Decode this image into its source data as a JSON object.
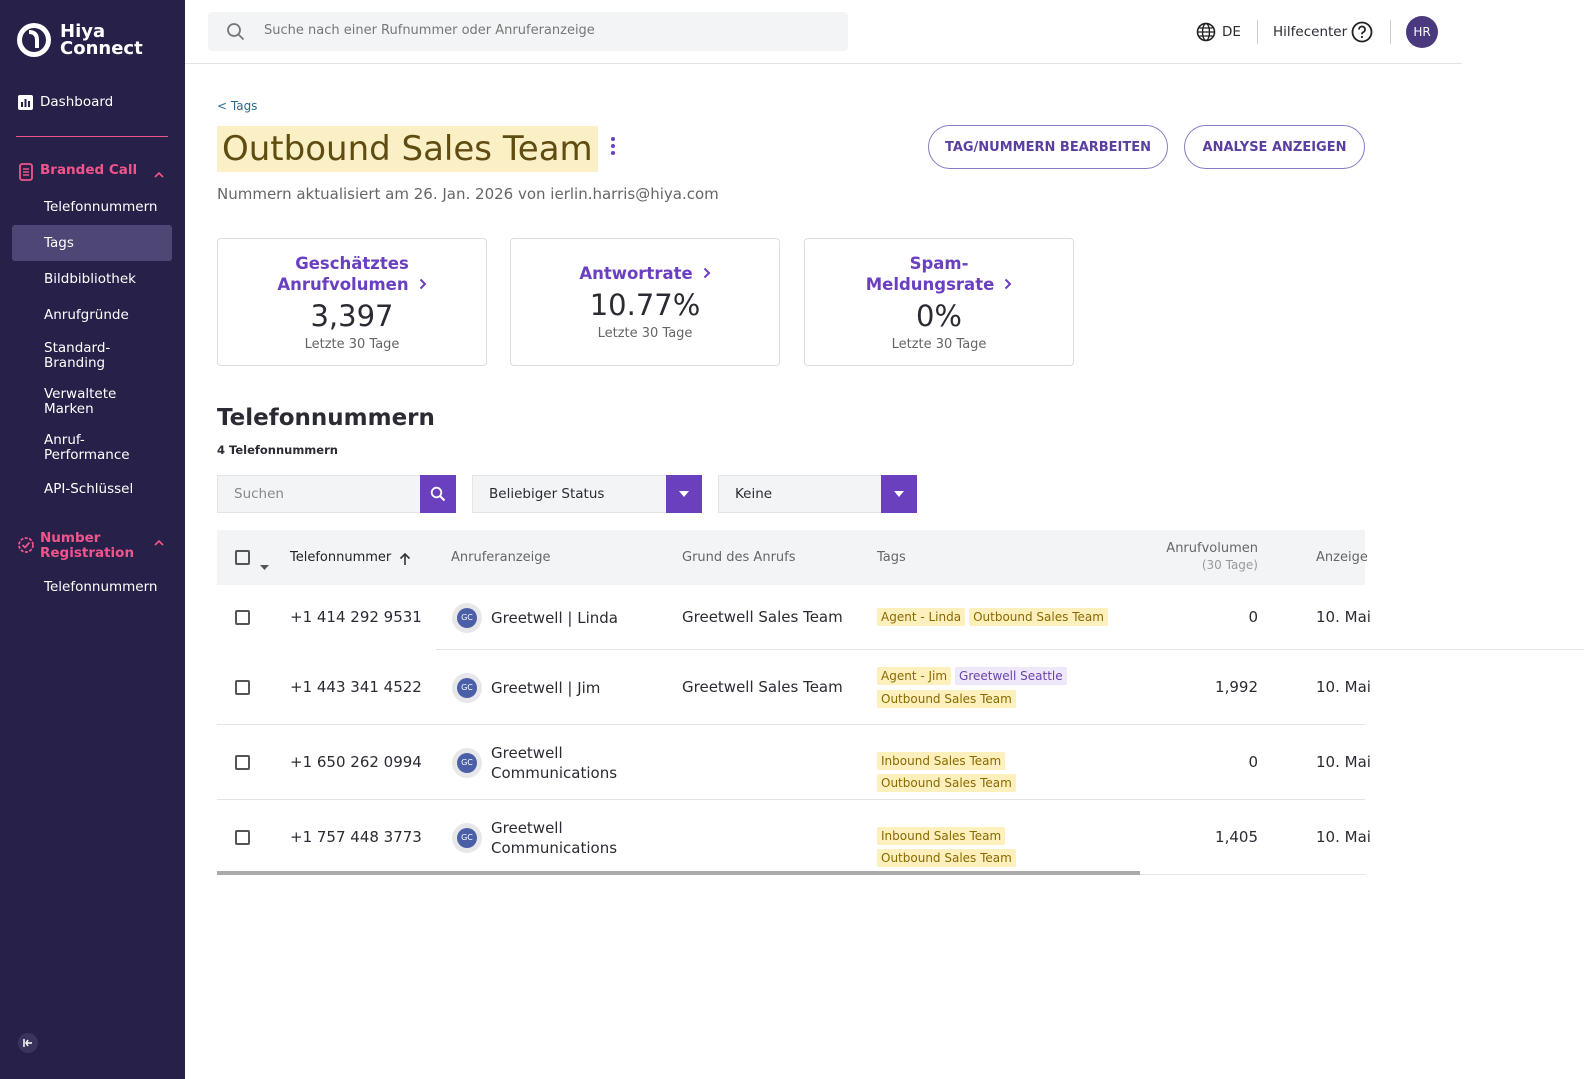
{
  "sidebar": {
    "logo": [
      "Hiya",
      "Connect"
    ],
    "dashboard": "Dashboard",
    "sections": [
      {
        "title": "Branded Call",
        "items": [
          "Telefonnummern",
          "Tags",
          "Bildbibliothek",
          "Anrufgründe",
          "Standard-Branding",
          "Verwaltete Marken",
          "Anruf-Performance",
          "API-Schlüssel"
        ]
      },
      {
        "title": "Number Registration",
        "items": [
          "Telefonnummern"
        ]
      }
    ]
  },
  "topbar": {
    "search_placeholder": "Suche nach einer Rufnummer oder Anruferanzeige",
    "language": "DE",
    "help": "Hilfecenter",
    "avatar": "HR"
  },
  "header": {
    "breadcrumb": "< Tags",
    "title": "Outbound Sales Team",
    "subtitle": "Nummern aktualisiert am 26. Jan. 2026 von ierlin.harris@hiya.com",
    "buttons": [
      "TAG/NUMMERN BEARBEITEN",
      "ANALYSE ANZEIGEN"
    ]
  },
  "stats": [
    {
      "title": "Geschätztes Anrufvolumen",
      "value": "3,397",
      "period": "Letzte 30 Tage"
    },
    {
      "title": "Antwortrate",
      "value": "10.77%",
      "period": "Letzte 30 Tage"
    },
    {
      "title": "Spam-Meldungsrate",
      "value": "0%",
      "period": "Letzte 30 Tage"
    }
  ],
  "numbers_section": {
    "title": "Telefonnummern",
    "count": "4 Telefonnummern",
    "search_placeholder": "Suchen",
    "filters": [
      "Beliebiger Status",
      "Keine"
    ]
  },
  "table": {
    "columns": [
      "Telefonnummer",
      "Anruferanzeige",
      "Grund des Anrufs",
      "Tags",
      "Anrufvolumen",
      "Anzeige"
    ],
    "volume_subtitle": "(30 Tage)",
    "rows": [
      {
        "number": "+1 414 292 9531",
        "initials": "GC",
        "display": "Greetwell | Linda",
        "reason": "Greetwell Sales Team",
        "tags": [
          "Agent - Linda",
          "Outbound Sales Team"
        ],
        "volume": "0",
        "date": "10. Mai"
      },
      {
        "number": "+1 443 341 4522",
        "initials": "GC",
        "display": "Greetwell | Jim",
        "reason": "Greetwell Sales Team",
        "tags": [
          "Agent - Jim",
          "Greetwell Seattle",
          "Outbound Sales Team"
        ],
        "volume": "1,992",
        "date": "10. Mai"
      },
      {
        "number": "+1 650 262 0994",
        "initials": "GC",
        "display": "Greetwell Communications",
        "tags": [
          "Inbound Sales Team",
          "Outbound Sales Team"
        ],
        "volume": "0",
        "date": "10. Mai"
      },
      {
        "number": "+1 757 448 3773",
        "initials": "GC",
        "display": "Greetwell Communications",
        "tags": [
          "Inbound Sales Team",
          "Outbound Sales Team"
        ],
        "volume": "1,405",
        "date": "10. Mai"
      }
    ]
  }
}
